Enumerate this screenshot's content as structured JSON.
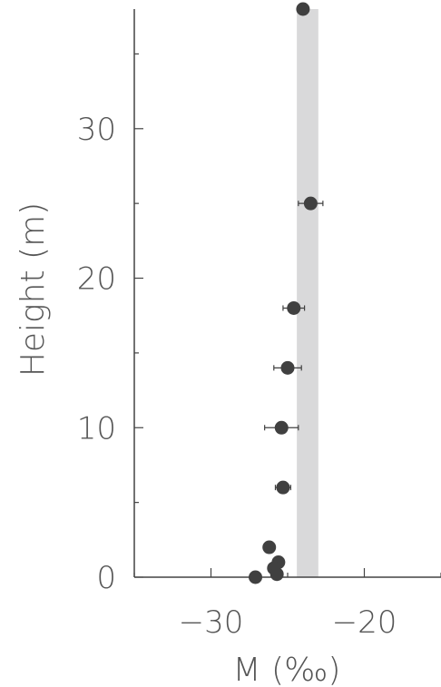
{
  "chart_data": {
    "type": "scatter",
    "xlabel": "M (‰)",
    "ylabel": "Height (m)",
    "xlim": [
      -35,
      -15
    ],
    "ylim": [
      0,
      38
    ],
    "x_ticks": [
      -30,
      -20
    ],
    "y_ticks": [
      0,
      10,
      20,
      30
    ],
    "x_tick_labels": [
      "−30",
      "−20"
    ],
    "y_tick_labels": [
      "0",
      "10",
      "20",
      "30"
    ],
    "grid": false,
    "reference_band": {
      "x_min": -24.4,
      "x_max": -23.0,
      "color": "#d9d9da"
    },
    "marker_color": "#404040",
    "points": [
      {
        "x": -24.0,
        "y": 38.0,
        "xerr": 0.3
      },
      {
        "x": -23.5,
        "y": 25.0,
        "xerr": 0.8
      },
      {
        "x": -24.6,
        "y": 18.0,
        "xerr": 0.7
      },
      {
        "x": -25.0,
        "y": 14.0,
        "xerr": 0.9
      },
      {
        "x": -25.4,
        "y": 10.0,
        "xerr": 1.1
      },
      {
        "x": -25.3,
        "y": 6.0,
        "xerr": 0.5
      },
      {
        "x": -26.2,
        "y": 2.0,
        "xerr": 0
      },
      {
        "x": -25.6,
        "y": 1.0,
        "xerr": 0
      },
      {
        "x": -25.9,
        "y": 0.6,
        "xerr": 0
      },
      {
        "x": -25.7,
        "y": 0.2,
        "xerr": 0
      },
      {
        "x": -27.1,
        "y": 0.0,
        "xerr": 0
      }
    ]
  }
}
